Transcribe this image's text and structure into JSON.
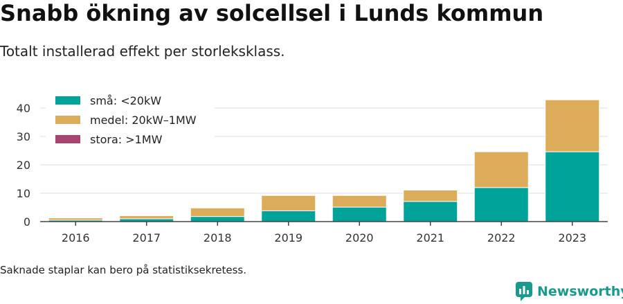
{
  "title": "Snabb ökning av solcellsel i Lunds kommun",
  "subtitle": "Totalt installerad effekt per storleksklass.",
  "note": "Saknade staplar kan bero på statistiksekretess.",
  "brand": {
    "name": "Newsworthy",
    "icon": "newsworthy-logo-icon",
    "color": "#1a9a8c"
  },
  "chart_data": {
    "type": "bar",
    "stacked": true,
    "categories": [
      "2016",
      "2017",
      "2018",
      "2019",
      "2020",
      "2021",
      "2022",
      "2023"
    ],
    "series": [
      {
        "name": "små: <20kW",
        "color": "#00a39a",
        "values": [
          0.5,
          1.0,
          1.8,
          3.8,
          5.1,
          7.1,
          12.0,
          24.6
        ]
      },
      {
        "name": "medel: 20kW–1MW",
        "color": "#dcac5a",
        "values": [
          0.8,
          1.1,
          3.0,
          5.4,
          4.1,
          4.0,
          12.6,
          18.3
        ]
      },
      {
        "name": "stora: >1MW",
        "color": "#a8446f",
        "values": [
          0,
          0,
          0,
          0,
          0,
          0,
          0,
          0
        ]
      }
    ],
    "y_ticks": [
      0,
      10,
      20,
      30,
      40
    ],
    "ylim": [
      0,
      44
    ],
    "grid": true,
    "legend_position": "top-left"
  }
}
